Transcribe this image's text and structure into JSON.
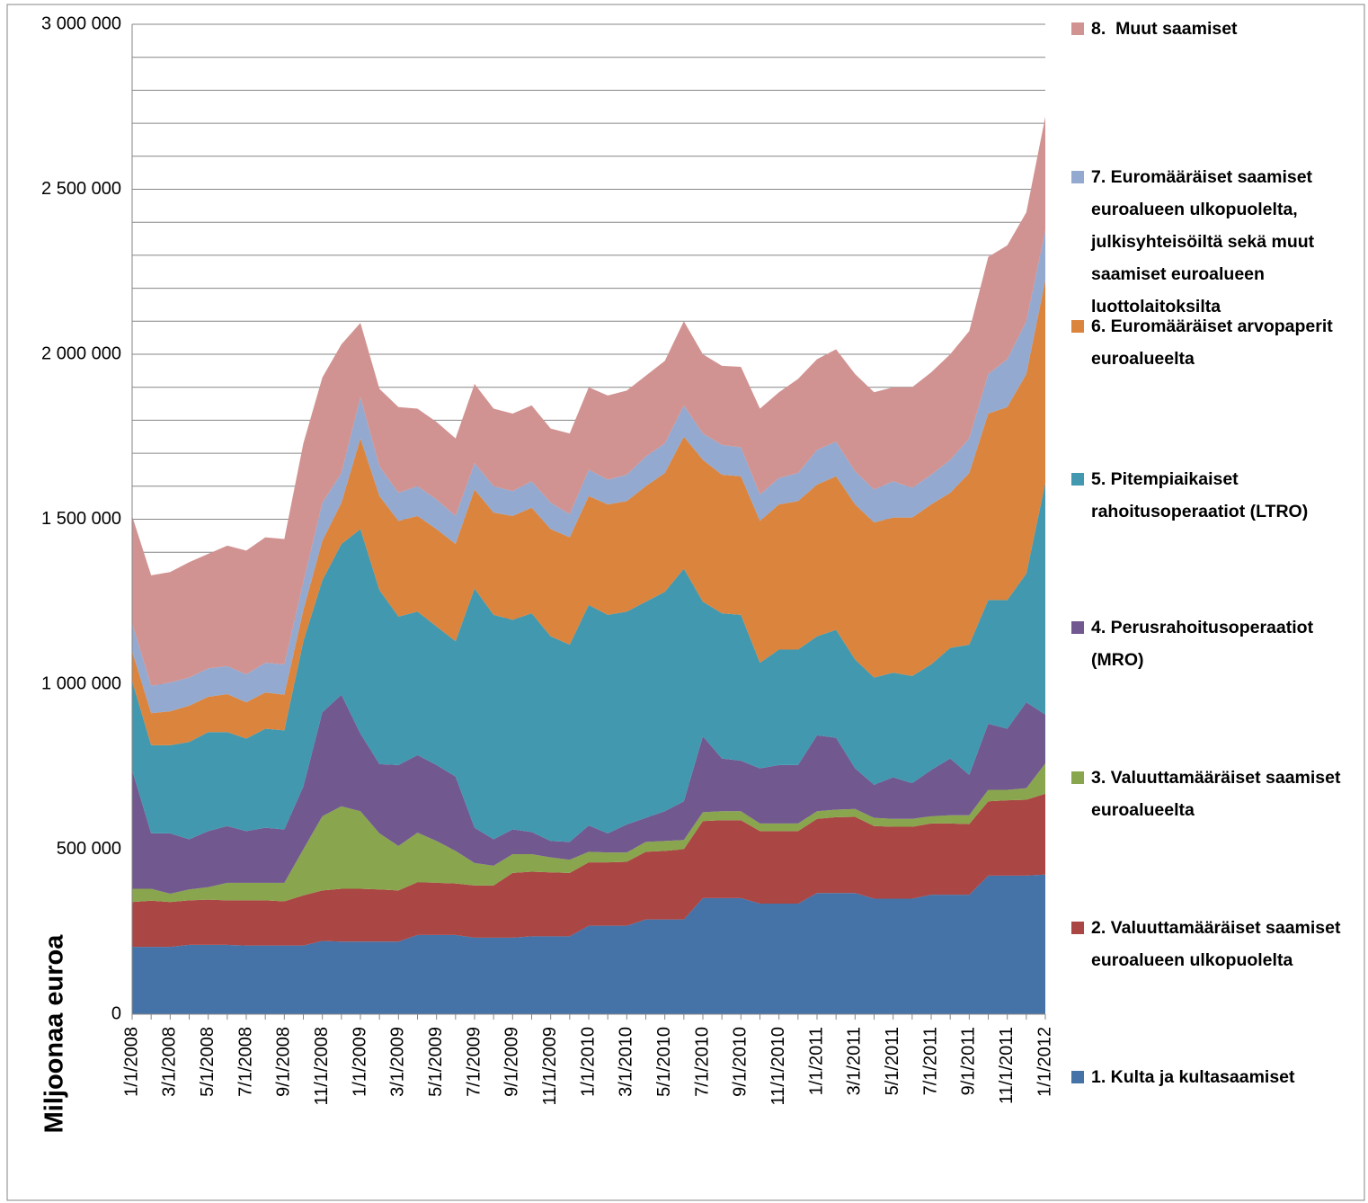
{
  "chart_data": {
    "type": "stacked_area",
    "ylabel": "Miljoonaa euroa",
    "categories": [
      "1/1/2008",
      null,
      "3/1/2008",
      null,
      "5/1/2008",
      null,
      "7/1/2008",
      null,
      "9/1/2008",
      null,
      "11/1/2008",
      null,
      "1/1/2009",
      null,
      "3/1/2009",
      null,
      "5/1/2009",
      null,
      "7/1/2009",
      null,
      "9/1/2009",
      null,
      "11/1/2009",
      null,
      "1/1/2010",
      null,
      "3/1/2010",
      null,
      "5/1/2010",
      null,
      "7/1/2010",
      null,
      "9/1/2010",
      null,
      "11/1/2010",
      null,
      "1/1/2011",
      null,
      "3/1/2011",
      null,
      "5/1/2011",
      null,
      "7/1/2011",
      null,
      "9/1/2011",
      null,
      "11/1/2011",
      null,
      "1/1/2012"
    ],
    "ylim": [
      0,
      3000000
    ],
    "yticks": [
      0,
      {
        "value": 500000,
        "label": "500 000"
      },
      {
        "value": 1000000,
        "label": "1 000 000"
      },
      {
        "value": 1500000,
        "label": "1 500 000"
      },
      {
        "value": 2000000,
        "label": "2 000 000"
      },
      {
        "value": 2500000,
        "label": "2 500 000"
      },
      {
        "value": 3000000,
        "label": "3 000 000"
      }
    ],
    "yminorticks": [
      100000,
      200000,
      300000,
      400000,
      600000,
      700000,
      800000,
      900000,
      1100000,
      1200000,
      1300000,
      1400000,
      1600000,
      1700000,
      1800000,
      1900000,
      2100000,
      2200000,
      2300000,
      2400000,
      2600000,
      2700000,
      2800000,
      2900000
    ],
    "grid": true,
    "series": [
      {
        "name": "1. Kulta ja kultasaamiset",
        "color": "#4572a7",
        "values": [
          204000,
          204000,
          204000,
          210000,
          210000,
          210000,
          208000,
          208000,
          208000,
          208000,
          222000,
          220000,
          220000,
          220000,
          220000,
          240000,
          240000,
          240000,
          232000,
          232000,
          232000,
          236000,
          236000,
          236000,
          268000,
          268000,
          268000,
          287000,
          287000,
          287000,
          352000,
          352000,
          352000,
          335000,
          335000,
          335000,
          367000,
          367000,
          367000,
          350000,
          350000,
          350000,
          362000,
          362000,
          362000,
          420000,
          420000,
          420000,
          423000
        ]
      },
      {
        "name": "2. Valuuttamääräiset saamiset euroalueen ulkopuolelta",
        "color": "#aa4643",
        "values": [
          136000,
          140000,
          136000,
          135000,
          137000,
          135000,
          137000,
          137000,
          134000,
          152000,
          153000,
          160000,
          160000,
          158000,
          155000,
          160000,
          158000,
          156000,
          158000,
          158000,
          196000,
          196000,
          194000,
          192000,
          192000,
          192000,
          194000,
          205000,
          208000,
          213000,
          233000,
          236000,
          236000,
          220000,
          220000,
          220000,
          225000,
          230000,
          231000,
          220000,
          218000,
          218000,
          216000,
          216000,
          214000,
          225000,
          228000,
          230000,
          245000
        ]
      },
      {
        "name": "3. Valuuttamääräiset saamiset euroalueelta",
        "color": "#89a54e",
        "values": [
          40000,
          36000,
          25000,
          33000,
          38000,
          53000,
          53000,
          53000,
          56000,
          140000,
          225000,
          250000,
          235000,
          170000,
          135000,
          150000,
          127000,
          99000,
          68000,
          60000,
          57000,
          53000,
          45000,
          40000,
          32000,
          30000,
          28000,
          30000,
          30000,
          28000,
          27000,
          27000,
          27000,
          23000,
          23000,
          23000,
          23000,
          23000,
          24000,
          25000,
          24000,
          24000,
          22000,
          25000,
          27000,
          35000,
          32000,
          35000,
          92000
        ]
      },
      {
        "name": "4. Perusrahoitusoperaatiot (MRO)",
        "color": "#71588f",
        "values": [
          360000,
          168000,
          183000,
          152000,
          170000,
          172000,
          157000,
          167000,
          162000,
          190000,
          315000,
          338000,
          235000,
          210000,
          245000,
          235000,
          230000,
          225000,
          107000,
          80000,
          75000,
          67000,
          50000,
          54000,
          80000,
          58000,
          85000,
          73000,
          90000,
          117000,
          230000,
          160000,
          153000,
          167000,
          177000,
          177000,
          230000,
          218000,
          123000,
          100000,
          126000,
          108000,
          140000,
          172000,
          122000,
          200000,
          185000,
          260000,
          148000
        ]
      },
      {
        "name": "5. Pitempiaikaiset rahoitusoperaatiot (LTRO)",
        "color": "#4198af",
        "values": [
          270000,
          267000,
          267000,
          295000,
          300000,
          285000,
          280000,
          300000,
          300000,
          440000,
          400000,
          457000,
          620000,
          527000,
          450000,
          435000,
          420000,
          410000,
          725000,
          680000,
          635000,
          663000,
          620000,
          598000,
          668000,
          662000,
          645000,
          655000,
          665000,
          705000,
          408000,
          440000,
          442000,
          320000,
          350000,
          350000,
          300000,
          327000,
          330000,
          325000,
          317000,
          325000,
          320000,
          335000,
          395000,
          375000,
          390000,
          390000,
          702000
        ]
      },
      {
        "name": "6. Euromääräiset arvopaperit euroalueelta",
        "color": "#db843d",
        "values": [
          90000,
          97000,
          103000,
          110000,
          107000,
          115000,
          110000,
          110000,
          108000,
          95000,
          120000,
          125000,
          275000,
          285000,
          290000,
          290000,
          295000,
          295000,
          300000,
          310000,
          315000,
          320000,
          325000,
          325000,
          330000,
          335000,
          335000,
          350000,
          360000,
          400000,
          430000,
          420000,
          420000,
          430000,
          440000,
          450000,
          460000,
          465000,
          470000,
          470000,
          470000,
          480000,
          485000,
          470000,
          520000,
          565000,
          585000,
          605000,
          615000
        ]
      },
      {
        "name": "7. Euromääräiset saamiset euroalueen ulkopuolelta, julkisyhteisöiltä sekä muut saamiset euroalueen luottolaitoksilta",
        "color": "#93a9cf",
        "values": [
          85000,
          83000,
          87000,
          85000,
          86000,
          85000,
          85000,
          90000,
          92000,
          85000,
          115000,
          90000,
          125000,
          90000,
          85000,
          90000,
          90000,
          85000,
          80000,
          80000,
          75000,
          80000,
          80000,
          70000,
          80000,
          75000,
          80000,
          90000,
          90000,
          95000,
          80000,
          90000,
          88000,
          80000,
          80000,
          85000,
          105000,
          105000,
          100000,
          100000,
          110000,
          90000,
          90000,
          100000,
          105000,
          120000,
          145000,
          160000,
          150000
        ]
      },
      {
        "name": "8.  Muut saamiset",
        "color": "#d19392",
        "values": [
          325000,
          335000,
          335000,
          350000,
          347000,
          365000,
          375000,
          380000,
          380000,
          420000,
          380000,
          390000,
          225000,
          235000,
          260000,
          235000,
          235000,
          235000,
          240000,
          235000,
          235000,
          230000,
          225000,
          245000,
          250000,
          255000,
          255000,
          245000,
          250000,
          255000,
          240000,
          240000,
          244000,
          260000,
          260000,
          285000,
          275000,
          280000,
          295000,
          295000,
          285000,
          305000,
          310000,
          320000,
          325000,
          355000,
          345000,
          330000,
          345000
        ]
      }
    ]
  }
}
